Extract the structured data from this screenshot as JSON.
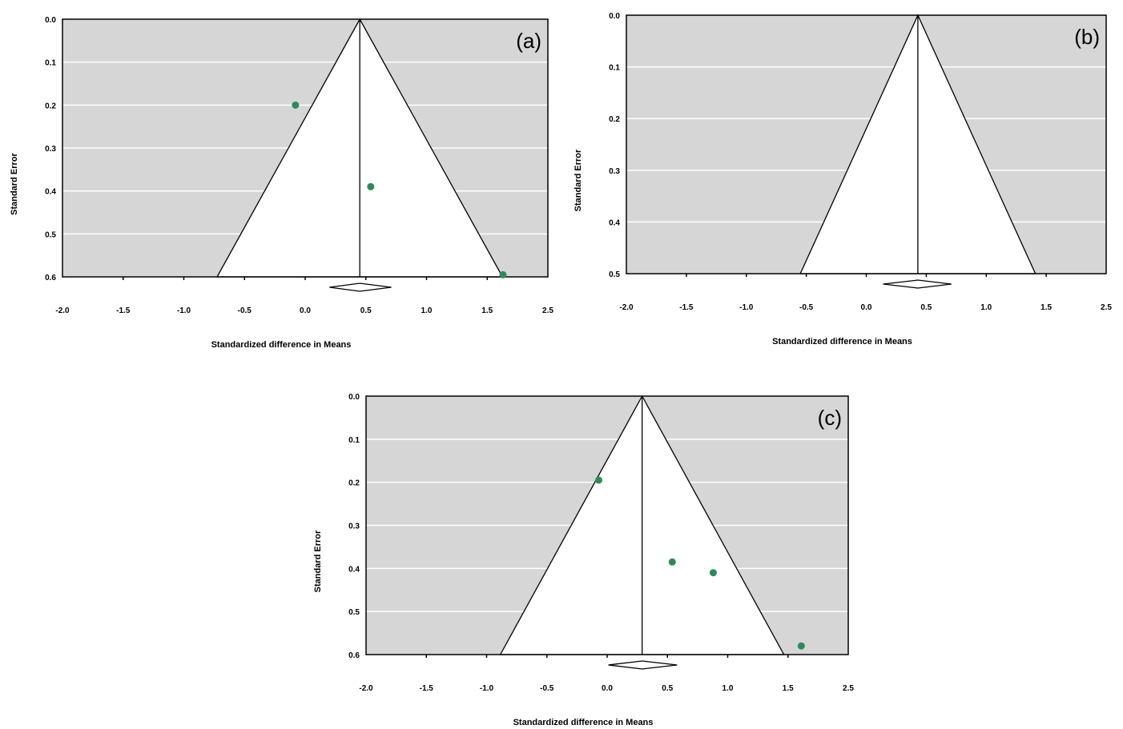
{
  "chart_data": [
    {
      "type": "scatter",
      "panel_label": "(a)",
      "xlabel": "Standardized difference in Means",
      "ylabel": "Standard Error",
      "xlim": [
        -2.0,
        2.0
      ],
      "ylim": [
        0.0,
        0.6
      ],
      "y_inverted": true,
      "x_tick_labels": [
        "-2.0",
        "-1.5",
        "-1.0",
        "-0.5",
        "0.0",
        "0.5",
        "1.0",
        "1.5",
        "2.5"
      ],
      "y_tick_labels": [
        "0.0",
        "0.1",
        "0.2",
        "0.3",
        "0.4",
        "0.5",
        "0.6"
      ],
      "pooled_estimate": 0.45,
      "pooled_ci": [
        0.2,
        0.71
      ],
      "points": [
        {
          "x": -0.08,
          "y": 0.2
        },
        {
          "x": 0.54,
          "y": 0.39
        },
        {
          "x": 1.63,
          "y": 0.595
        }
      ],
      "grid": true
    },
    {
      "type": "scatter",
      "panel_label": "(b)",
      "xlabel": "Standardized difference in Means",
      "ylabel": "Standard Error",
      "xlim": [
        -2.0,
        2.0
      ],
      "ylim": [
        0.0,
        0.5
      ],
      "y_inverted": true,
      "x_tick_labels": [
        "-2.0",
        "-1.5",
        "-1.0",
        "-0.5",
        "0.0",
        "0.5",
        "1.0",
        "1.5",
        "2.5"
      ],
      "y_tick_labels": [
        "0.0",
        "0.1",
        "0.2",
        "0.3",
        "0.4",
        "0.5"
      ],
      "pooled_estimate": 0.43,
      "pooled_ci": [
        0.14,
        0.71
      ],
      "points": [],
      "grid": true
    },
    {
      "type": "scatter",
      "panel_label": "(c)",
      "xlabel": "Standardized difference in Means",
      "ylabel": "Standard Error",
      "xlim": [
        -2.0,
        2.0
      ],
      "ylim": [
        0.0,
        0.6
      ],
      "y_inverted": true,
      "x_tick_labels": [
        "-2.0",
        "-1.5",
        "-1.0",
        "-0.5",
        "0.0",
        "0.5",
        "1.0",
        "1.5",
        "2.5"
      ],
      "y_tick_labels": [
        "0.0",
        "0.1",
        "0.2",
        "0.3",
        "0.4",
        "0.5",
        "0.6"
      ],
      "pooled_estimate": 0.29,
      "pooled_ci": [
        0.01,
        0.58
      ],
      "points": [
        {
          "x": -0.07,
          "y": 0.195
        },
        {
          "x": 0.54,
          "y": 0.385
        },
        {
          "x": 0.88,
          "y": 0.41
        },
        {
          "x": 1.61,
          "y": 0.58
        }
      ],
      "grid": true
    }
  ],
  "colors": {
    "background": "#d6d6d6",
    "funnel": "#ffffff",
    "point": "#2e8b57",
    "grid": "#ffffff"
  }
}
